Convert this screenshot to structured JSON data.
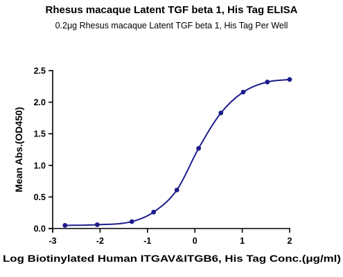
{
  "chart_data": {
    "type": "scatter",
    "title": "Rhesus macaque Latent TGF beta 1, His Tag ELISA",
    "subtitle": "0.2μg Rhesus macaque Latent TGF beta 1, His Tag Per Well",
    "xlabel": "Log Biotinylated Human ITGAV&ITGB6, His Tag Conc.(μg/ml)",
    "ylabel": "Mean Abs.(OD450)",
    "xlim": [
      -3,
      2
    ],
    "ylim": [
      0,
      2.5
    ],
    "x_ticks": [
      "-3",
      "-2",
      "-1",
      "0",
      "1",
      "2"
    ],
    "y_ticks": [
      "0.0",
      "0.5",
      "1.0",
      "1.5",
      "2.0",
      "2.5"
    ],
    "grid": false,
    "fit": "sigmoidal curve",
    "series": [
      {
        "x": [
          -2.74,
          -2.06,
          -1.33,
          -0.87,
          -0.38,
          0.08,
          0.55,
          1.02,
          1.53,
          2.0
        ],
        "y": [
          0.05,
          0.06,
          0.11,
          0.26,
          0.61,
          1.27,
          1.83,
          2.16,
          2.32,
          2.36
        ]
      }
    ],
    "colors": {
      "series": "#1c1c8c",
      "axis": "#000000"
    }
  }
}
